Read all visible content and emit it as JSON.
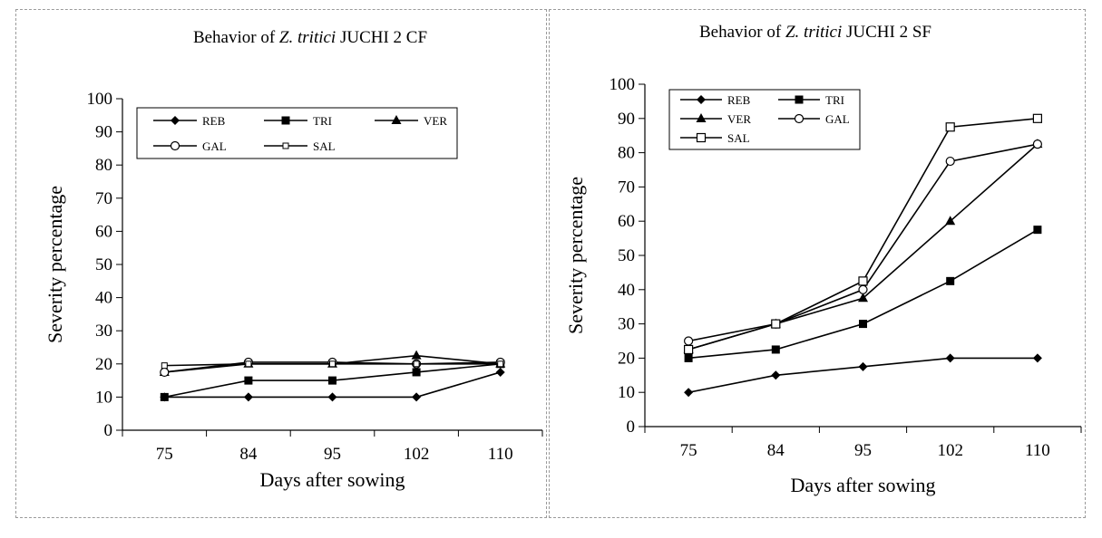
{
  "chart_data": [
    {
      "type": "line",
      "title_parts": [
        "Behavior of ",
        "Z. tritici",
        " JUCHI 2  CF"
      ],
      "xlabel": "Days after sowing",
      "ylabel": "Severity percentage",
      "categories": [
        "75",
        "84",
        "95",
        "102",
        "110"
      ],
      "ylim": [
        0,
        100
      ],
      "yticks": [
        "0",
        "10",
        "20",
        "30",
        "40",
        "50",
        "60",
        "70",
        "80",
        "90",
        "100"
      ],
      "grid": false,
      "legend_position": "top",
      "series": [
        {
          "name": "REB",
          "marker": "diamond",
          "values": [
            10,
            10,
            10,
            10,
            17.5
          ]
        },
        {
          "name": "TRI",
          "marker": "square-filled",
          "values": [
            10,
            15,
            15,
            17.5,
            20
          ]
        },
        {
          "name": "VER",
          "marker": "triangle",
          "values": [
            17.5,
            20,
            20,
            22.5,
            20
          ]
        },
        {
          "name": "GAL",
          "marker": "circle-open",
          "values": [
            17.5,
            20.5,
            20.5,
            20,
            20.5
          ]
        },
        {
          "name": "SAL",
          "marker": "square-open-small",
          "values": [
            19.5,
            20,
            20,
            20,
            20
          ]
        }
      ]
    },
    {
      "type": "line",
      "title_parts": [
        "Behavior of ",
        "Z. tritici",
        " JUCHI 2  SF"
      ],
      "xlabel": "Days  after sowing",
      "ylabel": "Severity percentage",
      "categories": [
        "75",
        "84",
        "95",
        "102",
        "110"
      ],
      "ylim": [
        0,
        100
      ],
      "yticks": [
        "0",
        "10",
        "20",
        "30",
        "40",
        "50",
        "60",
        "70",
        "80",
        "90",
        "100"
      ],
      "grid": false,
      "legend_position": "top-left",
      "series": [
        {
          "name": "REB",
          "marker": "diamond",
          "values": [
            10,
            15,
            17.5,
            20,
            20
          ]
        },
        {
          "name": "TRI",
          "marker": "square-filled",
          "values": [
            20,
            22.5,
            30,
            42.5,
            57.5
          ]
        },
        {
          "name": "VER",
          "marker": "triangle",
          "values": [
            22.5,
            30,
            37.5,
            60,
            82.5
          ]
        },
        {
          "name": "GAL",
          "marker": "circle-open",
          "values": [
            25,
            30,
            40,
            77.5,
            82.5
          ]
        },
        {
          "name": "SAL",
          "marker": "square-open",
          "values": [
            22.5,
            30,
            42.5,
            87.5,
            90
          ]
        }
      ]
    }
  ]
}
